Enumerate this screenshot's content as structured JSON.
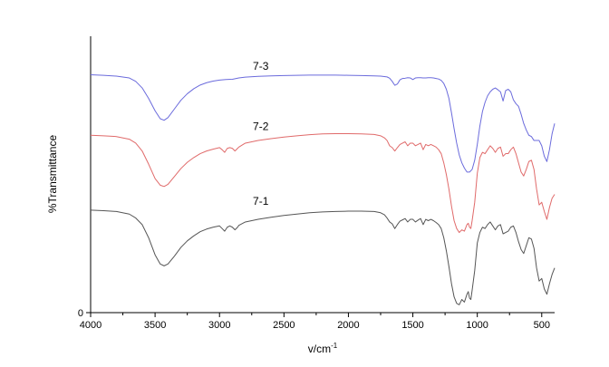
{
  "chart_data": {
    "type": "line",
    "xlabel": "v/cm",
    "xlabel_sup": "-1",
    "ylabel": "%Transmittance",
    "xlim": [
      4000,
      400
    ],
    "x_reversed": true,
    "ylim": [
      0,
      100
    ],
    "xticks": [
      "4000",
      "3500",
      "3000",
      "2500",
      "2000",
      "1500",
      "1000",
      "500"
    ],
    "yticks": [
      "0"
    ],
    "grid": false,
    "legend": "none",
    "series": [
      {
        "name": "7-3",
        "color": "#6b6bdc",
        "x": [
          4000,
          3900,
          3800,
          3700,
          3650,
          3600,
          3550,
          3500,
          3460,
          3430,
          3400,
          3350,
          3300,
          3250,
          3200,
          3150,
          3100,
          3050,
          3000,
          2950,
          2900,
          2850,
          2800,
          2700,
          2600,
          2500,
          2400,
          2300,
          2200,
          2100,
          2000,
          1900,
          1800,
          1750,
          1700,
          1680,
          1660,
          1640,
          1620,
          1600,
          1580,
          1560,
          1540,
          1520,
          1500,
          1480,
          1460,
          1440,
          1420,
          1400,
          1380,
          1360,
          1340,
          1320,
          1300,
          1280,
          1260,
          1240,
          1220,
          1200,
          1180,
          1160,
          1140,
          1120,
          1100,
          1080,
          1060,
          1040,
          1020,
          1000,
          980,
          960,
          940,
          920,
          900,
          880,
          860,
          840,
          820,
          800,
          780,
          760,
          740,
          720,
          700,
          680,
          660,
          640,
          620,
          600,
          580,
          560,
          540,
          520,
          500,
          480,
          460,
          440,
          420,
          400
        ],
        "y": [
          90.5,
          90.3,
          90.0,
          89.3,
          88.0,
          85.5,
          81.5,
          76.8,
          73.8,
          73.2,
          74.2,
          77.5,
          80.8,
          83.3,
          85.2,
          86.6,
          87.5,
          88.1,
          88.5,
          88.7,
          88.8,
          89.3,
          89.6,
          89.9,
          90.1,
          90.2,
          90.3,
          90.4,
          90.4,
          90.4,
          90.3,
          90.2,
          90.1,
          90.0,
          89.7,
          89.2,
          88.0,
          86.5,
          87.0,
          88.6,
          89.1,
          89.2,
          89.4,
          89.3,
          88.7,
          89.3,
          89.4,
          89.4,
          89.3,
          89.3,
          89.4,
          89.4,
          89.3,
          89.1,
          88.9,
          88.4,
          87.2,
          85.0,
          81.5,
          76.0,
          70.0,
          64.5,
          60.0,
          57.0,
          55.0,
          53.5,
          53.5,
          54.5,
          58.0,
          64.0,
          71.0,
          76.5,
          80.0,
          82.5,
          84.0,
          85.0,
          85.5,
          84.8,
          84.0,
          80.5,
          84.5,
          85.0,
          84.0,
          81.0,
          79.5,
          78.5,
          75.5,
          72.0,
          69.5,
          67.5,
          67.0,
          65.5,
          65.5,
          65.5,
          63.5,
          59.5,
          57.5,
          62.0,
          68.0,
          72.0
        ]
      },
      {
        "name": "7-2",
        "color": "#e06a6a",
        "x": [
          4000,
          3900,
          3800,
          3700,
          3650,
          3600,
          3550,
          3500,
          3460,
          3430,
          3400,
          3350,
          3300,
          3250,
          3200,
          3150,
          3100,
          3050,
          3000,
          2980,
          2960,
          2940,
          2920,
          2900,
          2880,
          2860,
          2850,
          2800,
          2700,
          2600,
          2500,
          2400,
          2300,
          2200,
          2100,
          2000,
          1900,
          1800,
          1750,
          1720,
          1700,
          1680,
          1660,
          1640,
          1620,
          1600,
          1580,
          1560,
          1540,
          1520,
          1500,
          1480,
          1460,
          1440,
          1420,
          1400,
          1380,
          1360,
          1340,
          1320,
          1300,
          1280,
          1260,
          1240,
          1220,
          1200,
          1180,
          1160,
          1140,
          1120,
          1100,
          1080,
          1070,
          1060,
          1050,
          1040,
          1020,
          1000,
          980,
          960,
          940,
          920,
          900,
          880,
          860,
          840,
          820,
          800,
          780,
          760,
          740,
          720,
          700,
          680,
          660,
          640,
          620,
          600,
          580,
          560,
          540,
          520,
          500,
          480,
          460,
          440,
          420,
          400
        ],
        "y": [
          67.5,
          67.3,
          67.0,
          66.0,
          64.5,
          61.5,
          56.5,
          51.0,
          48.5,
          48.0,
          48.8,
          51.8,
          54.8,
          57.2,
          59.0,
          60.5,
          61.5,
          62.2,
          62.8,
          62.0,
          61.0,
          62.5,
          62.8,
          62.5,
          61.5,
          62.5,
          63.0,
          64.5,
          65.5,
          66.2,
          66.8,
          67.3,
          67.7,
          68.0,
          68.1,
          68.1,
          68.0,
          67.8,
          67.3,
          66.5,
          65.5,
          63.5,
          62.8,
          61.5,
          62.8,
          64.0,
          64.5,
          65.0,
          63.5,
          64.5,
          64.5,
          63.5,
          64.0,
          64.5,
          62.0,
          64.0,
          63.5,
          64.0,
          63.5,
          63.0,
          62.0,
          60.5,
          57.0,
          52.5,
          47.0,
          40.5,
          35.0,
          32.0,
          30.5,
          31.5,
          31.0,
          33.5,
          34.0,
          32.5,
          32.0,
          35.0,
          42.0,
          53.0,
          59.0,
          61.0,
          60.5,
          62.0,
          63.5,
          62.5,
          61.0,
          62.5,
          63.0,
          59.5,
          60.5,
          60.5,
          62.0,
          63.0,
          60.5,
          57.0,
          53.5,
          52.0,
          54.5,
          57.5,
          58.0,
          54.5,
          47.0,
          41.0,
          42.0,
          38.5,
          35.5,
          40.0,
          43.5,
          45.0
        ]
      },
      {
        "name": "7-1",
        "color": "#555555",
        "x": [
          4000,
          3900,
          3800,
          3700,
          3650,
          3600,
          3550,
          3500,
          3460,
          3430,
          3400,
          3350,
          3300,
          3250,
          3200,
          3150,
          3100,
          3050,
          3000,
          2980,
          2960,
          2940,
          2920,
          2900,
          2880,
          2860,
          2850,
          2800,
          2700,
          2600,
          2500,
          2400,
          2300,
          2200,
          2100,
          2000,
          1900,
          1800,
          1750,
          1720,
          1700,
          1680,
          1660,
          1640,
          1620,
          1600,
          1580,
          1560,
          1540,
          1520,
          1500,
          1480,
          1460,
          1440,
          1420,
          1400,
          1380,
          1360,
          1340,
          1320,
          1300,
          1280,
          1260,
          1240,
          1220,
          1200,
          1180,
          1160,
          1140,
          1120,
          1100,
          1080,
          1070,
          1060,
          1050,
          1040,
          1020,
          1000,
          980,
          960,
          940,
          920,
          900,
          880,
          860,
          840,
          820,
          800,
          780,
          760,
          740,
          720,
          700,
          680,
          660,
          640,
          620,
          600,
          580,
          560,
          540,
          520,
          500,
          480,
          460,
          440,
          420,
          400
        ],
        "y": [
          39.0,
          38.8,
          38.5,
          37.5,
          36.0,
          33.5,
          28.5,
          22.0,
          18.5,
          17.8,
          18.5,
          21.5,
          24.8,
          27.3,
          29.2,
          30.8,
          31.8,
          32.5,
          33.0,
          32.0,
          31.0,
          32.5,
          33.0,
          32.5,
          31.5,
          32.5,
          33.2,
          34.5,
          35.5,
          36.3,
          37.0,
          37.5,
          38.0,
          38.3,
          38.5,
          38.6,
          38.6,
          38.5,
          38.0,
          37.2,
          36.0,
          34.5,
          33.8,
          32.0,
          33.5,
          34.8,
          35.3,
          35.8,
          34.5,
          35.5,
          35.5,
          34.5,
          35.2,
          35.8,
          33.5,
          35.5,
          35.0,
          35.5,
          35.0,
          34.3,
          33.5,
          32.0,
          28.5,
          23.5,
          17.5,
          11.0,
          6.0,
          3.5,
          3.0,
          5.0,
          4.0,
          7.0,
          8.0,
          5.5,
          5.0,
          8.5,
          16.0,
          26.5,
          30.5,
          32.5,
          32.0,
          33.5,
          34.5,
          33.0,
          31.5,
          33.0,
          33.5,
          30.0,
          30.5,
          31.0,
          32.5,
          33.0,
          30.5,
          27.0,
          24.0,
          22.5,
          25.5,
          28.5,
          28.0,
          24.5,
          17.0,
          12.0,
          13.0,
          9.0,
          7.0,
          11.0,
          14.5,
          17.0
        ]
      }
    ],
    "annotations": [
      {
        "text": "7-3",
        "x": 2680,
        "y": 92.5
      },
      {
        "text": "7-2",
        "x": 2680,
        "y": 69.5
      },
      {
        "text": "7-1",
        "x": 2680,
        "y": 41.0
      }
    ]
  }
}
